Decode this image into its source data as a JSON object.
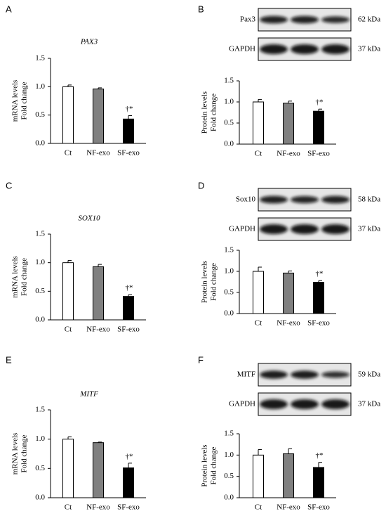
{
  "chart_data": [
    {
      "type": "bar",
      "panel": "A",
      "title": "PAX3",
      "ylabel": [
        "mRNA levels",
        "Fold change"
      ],
      "categories": [
        "Ct",
        "NF-exo",
        "SF-exo"
      ],
      "values": [
        1.0,
        0.96,
        0.43
      ],
      "errors": [
        0.03,
        0.02,
        0.06
      ],
      "colors": [
        "#ffffff",
        "#808080",
        "#000000"
      ],
      "annotation": "†*",
      "ylim": [
        0,
        1.5
      ],
      "yticks": [
        {
          "value": 0,
          "label": "0.0"
        },
        0.5,
        {
          "value": 1,
          "label": "1.0"
        },
        1.5
      ]
    },
    {
      "type": "bar",
      "panel": "B",
      "blot": {
        "protein": "Pax3",
        "protein_kda": "62 kDa",
        "control": "GAPDH",
        "control_kda": "37 kDa"
      },
      "ylabel": [
        "Protein levels",
        "Fold change"
      ],
      "categories": [
        "Ct",
        "NF-exo",
        "SF-exo"
      ],
      "values": [
        1.0,
        0.97,
        0.78
      ],
      "errors": [
        0.06,
        0.05,
        0.05
      ],
      "colors": [
        "#ffffff",
        "#808080",
        "#000000"
      ],
      "annotation": "†*",
      "ylim": [
        0,
        1.5
      ],
      "yticks": [
        {
          "value": 0,
          "label": "0.0"
        },
        0.5,
        {
          "value": 1,
          "label": "1.0"
        },
        1.5
      ]
    },
    {
      "type": "bar",
      "panel": "C",
      "title": "SOX10",
      "ylabel": [
        "mRNA levels",
        "Fold change"
      ],
      "categories": [
        "Ct",
        "NF-exo",
        "SF-exo"
      ],
      "values": [
        1.0,
        0.93,
        0.41
      ],
      "errors": [
        0.04,
        0.04,
        0.03
      ],
      "colors": [
        "#ffffff",
        "#808080",
        "#000000"
      ],
      "annotation": "†*",
      "ylim": [
        0,
        1.5
      ],
      "yticks": [
        {
          "value": 0,
          "label": "0.0"
        },
        0.5,
        {
          "value": 1,
          "label": "1.0"
        },
        1.5
      ]
    },
    {
      "type": "bar",
      "panel": "D",
      "blot": {
        "protein": "Sox10",
        "protein_kda": "58 kDa",
        "control": "GAPDH",
        "control_kda": "37 kDa"
      },
      "ylabel": [
        "Protein levels",
        "Fold change"
      ],
      "categories": [
        "Ct",
        "NF-exo",
        "SF-exo"
      ],
      "values": [
        1.0,
        0.96,
        0.74
      ],
      "errors": [
        0.1,
        0.05,
        0.04
      ],
      "colors": [
        "#ffffff",
        "#808080",
        "#000000"
      ],
      "annotation": "†*",
      "ylim": [
        0,
        1.5
      ],
      "yticks": [
        {
          "value": 0,
          "label": "0.0"
        },
        0.5,
        {
          "value": 1,
          "label": "1.0"
        },
        1.5
      ]
    },
    {
      "type": "bar",
      "panel": "E",
      "title": "MITF",
      "ylabel": [
        "mRNA levels",
        "Fold change"
      ],
      "categories": [
        "Ct",
        "NF-exo",
        "SF-exo"
      ],
      "values": [
        1.0,
        0.94,
        0.51
      ],
      "errors": [
        0.04,
        0.01,
        0.08
      ],
      "colors": [
        "#ffffff",
        "#808080",
        "#000000"
      ],
      "annotation": "†*",
      "ylim": [
        0,
        1.5
      ],
      "yticks": [
        {
          "value": 0,
          "label": "0.0"
        },
        0.5,
        {
          "value": 1,
          "label": "1.0"
        },
        1.5
      ]
    },
    {
      "type": "bar",
      "panel": "F",
      "blot": {
        "protein": "MITF",
        "protein_kda": "59 kDa",
        "control": "GAPDH",
        "control_kda": "37 kDa"
      },
      "ylabel": [
        "Protein levels",
        "Fold change"
      ],
      "categories": [
        "Ct",
        "NF-exo",
        "SF-exo"
      ],
      "values": [
        1.0,
        1.03,
        0.71
      ],
      "errors": [
        0.13,
        0.12,
        0.12
      ],
      "colors": [
        "#ffffff",
        "#808080",
        "#000000"
      ],
      "annotation": "†*",
      "ylim": [
        0,
        1.5
      ],
      "yticks": [
        {
          "value": 0,
          "label": "0.0"
        },
        0.5,
        {
          "value": 1,
          "label": "1.0"
        },
        1.5
      ]
    }
  ]
}
